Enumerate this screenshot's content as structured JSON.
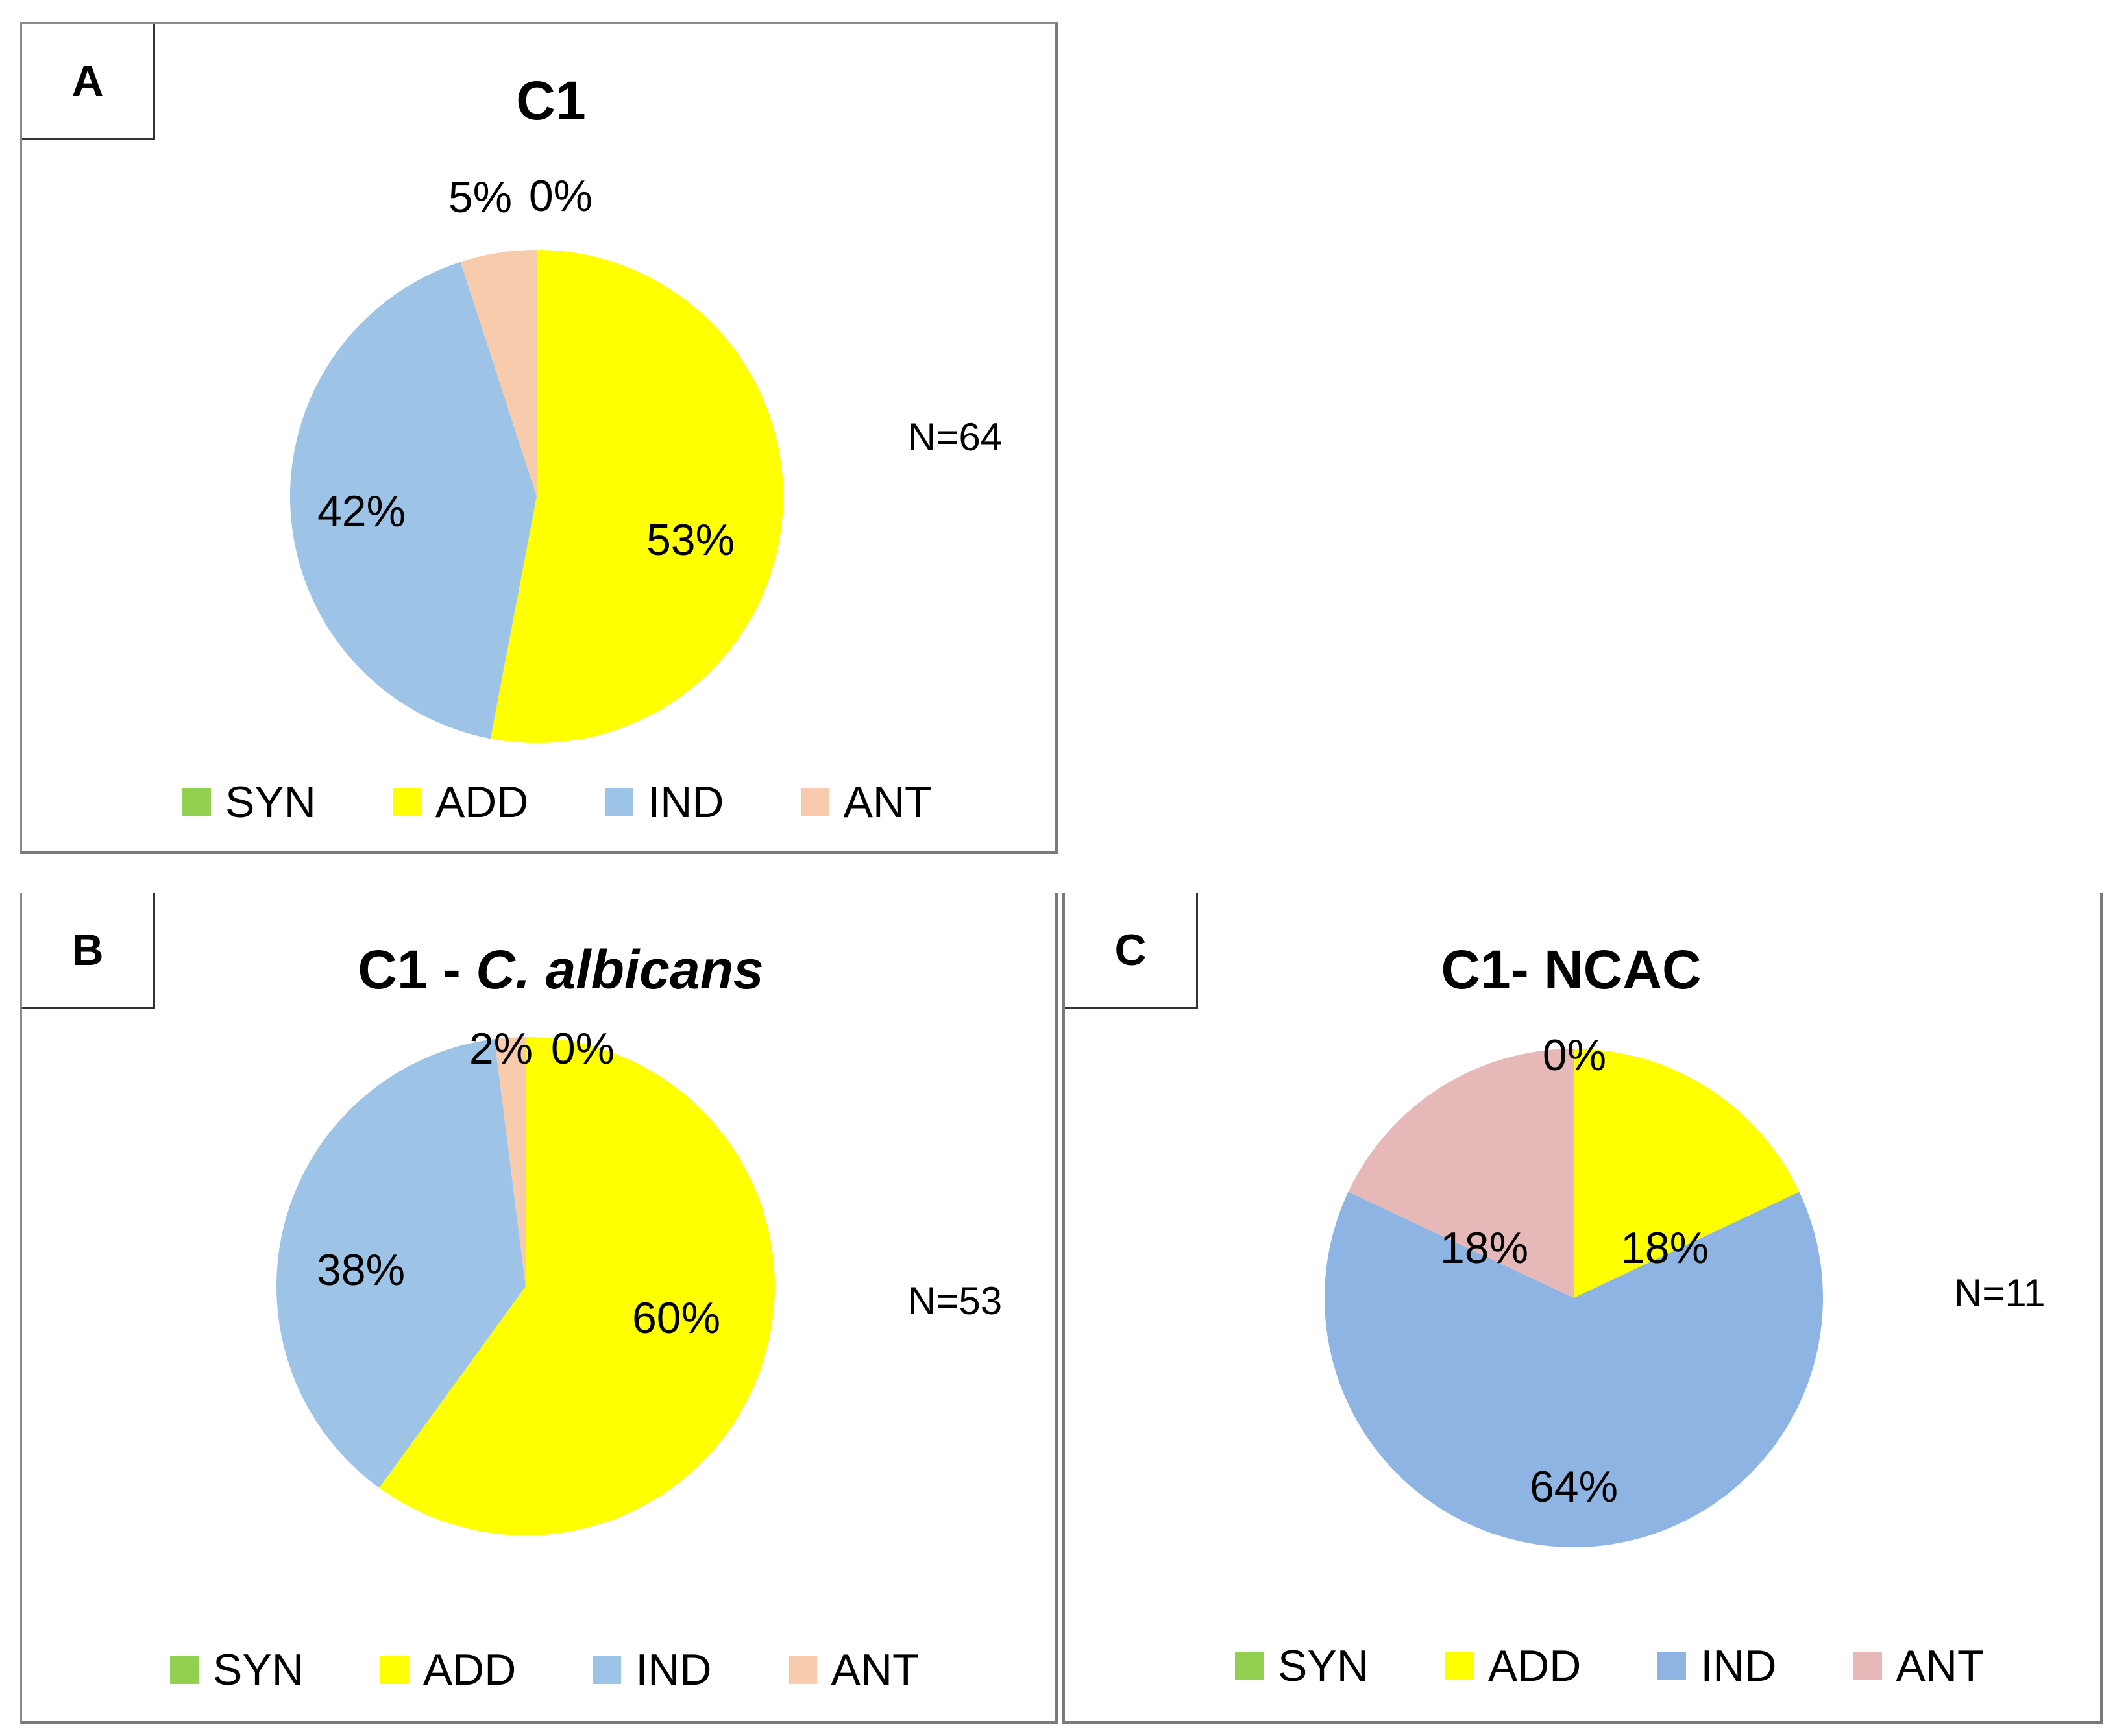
{
  "chart_data": [
    {
      "id": "A",
      "type": "pie",
      "panel_label": "A",
      "title": "C1",
      "title_italic_part": "",
      "n_label": "N=64",
      "start_angle": "12 o'clock",
      "direction": "clockwise",
      "slices": [
        {
          "name": "SYN",
          "value": 0,
          "label": "0%",
          "color": "#92d050"
        },
        {
          "name": "ADD",
          "value": 53,
          "label": "53%",
          "color": "#ffff00"
        },
        {
          "name": "IND",
          "value": 42,
          "label": "42%",
          "color": "#9dc3e6"
        },
        {
          "name": "ANT",
          "value": 5,
          "label": "5%",
          "color": "#f8cbad"
        }
      ],
      "legend": [
        {
          "label": "SYN",
          "color": "#92d050"
        },
        {
          "label": "ADD",
          "color": "#ffff00"
        },
        {
          "label": "IND",
          "color": "#9dc3e6"
        },
        {
          "label": "ANT",
          "color": "#f8cbad"
        }
      ]
    },
    {
      "id": "B",
      "type": "pie",
      "panel_label": "B",
      "title": "C1 - ",
      "title_italic_part": "C. albicans",
      "n_label": "N=53",
      "start_angle": "12 o'clock",
      "direction": "clockwise",
      "slices": [
        {
          "name": "SYN",
          "value": 0,
          "label": "0%",
          "color": "#92d050"
        },
        {
          "name": "ADD",
          "value": 60,
          "label": "60%",
          "color": "#ffff00"
        },
        {
          "name": "IND",
          "value": 38,
          "label": "38%",
          "color": "#9dc3e6"
        },
        {
          "name": "ANT",
          "value": 2,
          "label": "2%",
          "color": "#f8cbad"
        }
      ],
      "legend": [
        {
          "label": "SYN",
          "color": "#92d050"
        },
        {
          "label": "ADD",
          "color": "#ffff00"
        },
        {
          "label": "IND",
          "color": "#9dc3e6"
        },
        {
          "label": "ANT",
          "color": "#f8cbad"
        }
      ]
    },
    {
      "id": "C",
      "type": "pie",
      "panel_label": "C",
      "title": "C1- NCAC",
      "title_italic_part": "",
      "n_label": "N=11",
      "start_angle": "12 o'clock",
      "direction": "clockwise",
      "slices": [
        {
          "name": "SYN",
          "value": 0,
          "label": "0%",
          "color": "#92d050"
        },
        {
          "name": "ADD",
          "value": 18,
          "label": "18%",
          "color": "#ffff00"
        },
        {
          "name": "IND",
          "value": 64,
          "label": "64%",
          "color": "#8eb4e3"
        },
        {
          "name": "ANT",
          "value": 18,
          "label": "18%",
          "color": "#e6b9b8"
        }
      ],
      "legend": [
        {
          "label": "SYN",
          "color": "#92d050"
        },
        {
          "label": "ADD",
          "color": "#ffff00"
        },
        {
          "label": "IND",
          "color": "#8eb4e3"
        },
        {
          "label": "ANT",
          "color": "#e6b9b8"
        }
      ]
    }
  ]
}
